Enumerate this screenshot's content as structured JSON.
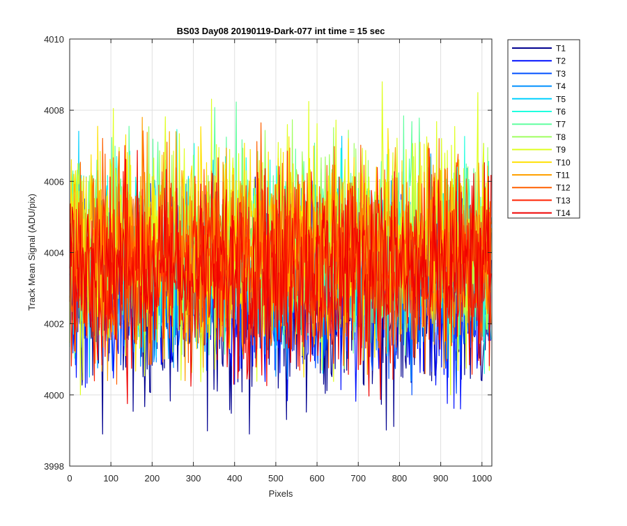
{
  "chart_data": {
    "type": "line",
    "title": "BS03 Day08 20190119-Dark-077 int time = 15 sec",
    "xlabel": "Pixels",
    "ylabel": "Track Mean Signal (ADU/pix)",
    "xlim": [
      0,
      1024
    ],
    "ylim": [
      3998,
      4010
    ],
    "xticks": [
      0,
      100,
      200,
      300,
      400,
      500,
      600,
      700,
      800,
      900,
      1000
    ],
    "yticks": [
      3998,
      4000,
      4002,
      4004,
      4006,
      4008,
      4010
    ],
    "grid": true,
    "legend_position": "outside-top-right",
    "n_points": 1024,
    "note": "Noisy dark-frame traces; per-series values summarized by band (mean, noise amplitude) since individual samples are not readable.",
    "series": [
      {
        "name": "T1",
        "color": "#00008f",
        "mean": 4002.6,
        "range": [
          3998.9,
          4007.0
        ]
      },
      {
        "name": "T2",
        "color": "#0010ff",
        "mean": 4002.8,
        "range": [
          3999.5,
          4007.2
        ]
      },
      {
        "name": "T3",
        "color": "#0050ff",
        "mean": 4003.0,
        "range": [
          4000.0,
          4007.5
        ]
      },
      {
        "name": "T4",
        "color": "#0090ff",
        "mean": 4003.4,
        "range": [
          4000.3,
          4007.8
        ]
      },
      {
        "name": "T5",
        "color": "#00d0ff",
        "mean": 4003.8,
        "range": [
          4000.5,
          4009.2
        ]
      },
      {
        "name": "T6",
        "color": "#20ffdf",
        "mean": 4004.0,
        "range": [
          4000.6,
          4008.4
        ]
      },
      {
        "name": "T7",
        "color": "#60ff9f",
        "mean": 4004.2,
        "range": [
          4000.7,
          4008.6
        ]
      },
      {
        "name": "T8",
        "color": "#9fff60",
        "mean": 4004.3,
        "range": [
          4000.7,
          4008.7
        ]
      },
      {
        "name": "T9",
        "color": "#dfff20",
        "mean": 4004.3,
        "range": [
          4000.0,
          4008.8
        ]
      },
      {
        "name": "T10",
        "color": "#ffe000",
        "mean": 4004.2,
        "range": [
          4000.5,
          4008.5
        ]
      },
      {
        "name": "T11",
        "color": "#ffa000",
        "mean": 4004.0,
        "range": [
          4000.4,
          4008.9
        ]
      },
      {
        "name": "T12",
        "color": "#ff6000",
        "mean": 4003.9,
        "range": [
          4000.3,
          4008.3
        ]
      },
      {
        "name": "T13",
        "color": "#ff2000",
        "mean": 4003.7,
        "range": [
          4000.3,
          4008.1
        ]
      },
      {
        "name": "T14",
        "color": "#ef0000",
        "mean": 4003.4,
        "range": [
          3999.7,
          4007.9
        ]
      }
    ]
  }
}
